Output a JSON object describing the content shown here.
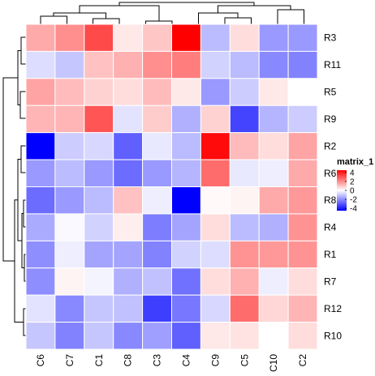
{
  "chart_data": {
    "type": "heatmap",
    "legend_title": "matrix_1",
    "legend_ticks": [
      "4",
      "2",
      "0",
      "-2",
      "-4"
    ],
    "legend_tick_values": [
      4,
      2,
      0,
      -2,
      -4
    ],
    "value_range": [
      -4.5,
      4.5
    ],
    "colors": {
      "low": "#0000ff",
      "mid": "#ffffff",
      "high": "#ff0000",
      "grid": "#ffffff",
      "dendrogram": "#000000"
    },
    "columns": [
      "C6",
      "C7",
      "C1",
      "C8",
      "C3",
      "C4",
      "C9",
      "C5",
      "C10",
      "C2"
    ],
    "rows": [
      "R3",
      "R11",
      "R5",
      "R9",
      "R2",
      "R6",
      "R8",
      "R4",
      "R1",
      "R7",
      "R12",
      "R10"
    ],
    "values": [
      [
        1.5,
        2.0,
        3.2,
        0.4,
        1.0,
        4.5,
        -1.2,
        0.6,
        -1.8,
        -1.8
      ],
      [
        -0.6,
        -1.0,
        1.1,
        1.4,
        2.0,
        2.3,
        -0.8,
        -1.2,
        -2.1,
        -2.2
      ],
      [
        1.6,
        1.2,
        0.8,
        0.6,
        1.2,
        0.4,
        -1.8,
        -0.9,
        0.4,
        0.0
      ],
      [
        1.3,
        1.3,
        3.0,
        -0.5,
        0.9,
        -1.4,
        0.8,
        -3.3,
        -1.3,
        -0.9
      ],
      [
        -4.5,
        -0.9,
        -0.7,
        -2.8,
        -0.4,
        -1.2,
        4.3,
        1.2,
        0.6,
        1.6
      ],
      [
        -1.8,
        -1.2,
        -1.8,
        -2.6,
        -1.8,
        -1.3,
        2.6,
        -0.4,
        -0.3,
        1.5
      ],
      [
        -2.6,
        -1.8,
        -1.2,
        1.1,
        -0.3,
        -4.6,
        0.1,
        0.2,
        1.5,
        1.8
      ],
      [
        -1.5,
        -0.1,
        -0.8,
        0.3,
        -2.3,
        -1.6,
        0.6,
        -1.2,
        -1.4,
        1.9
      ],
      [
        -2.0,
        -0.3,
        -1.6,
        -1.6,
        -2.2,
        -0.8,
        -0.6,
        1.9,
        1.8,
        1.9
      ],
      [
        -2.0,
        0.2,
        -0.2,
        -1.4,
        -1.1,
        -2.5,
        0.6,
        1.4,
        -0.3,
        0.6
      ],
      [
        -0.5,
        -2.1,
        -1.0,
        -1.1,
        -3.4,
        -2.4,
        -0.7,
        2.6,
        0.7,
        1.3
      ],
      [
        -1.0,
        -2.2,
        -1.0,
        -2.1,
        -1.7,
        -2.8,
        0.4,
        0.5,
        0.0,
        0.6
      ]
    ]
  }
}
